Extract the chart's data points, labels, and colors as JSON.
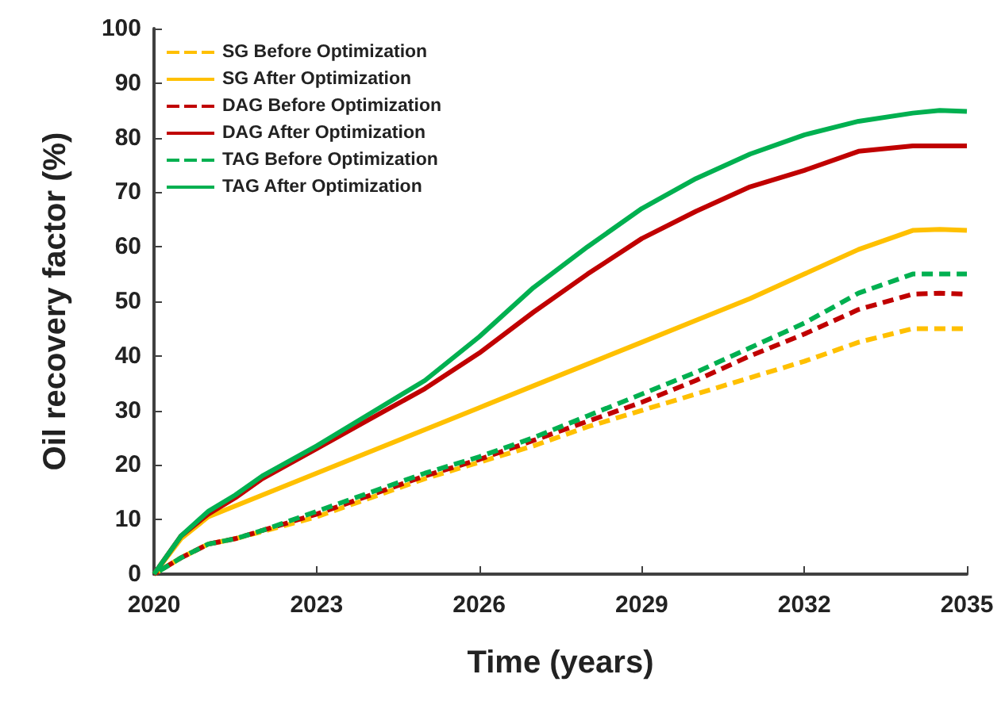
{
  "chart_data": {
    "type": "line",
    "xlabel": "Time (years)",
    "ylabel": "Oil recovery factor (%)",
    "x": [
      2020,
      2020.5,
      2021,
      2021.5,
      2022,
      2023,
      2024,
      2025,
      2026,
      2027,
      2028,
      2029,
      2030,
      2031,
      2032,
      2033,
      2034,
      2034.5,
      2035
    ],
    "xlim": [
      2020,
      2035
    ],
    "xticks": [
      2020,
      2023,
      2026,
      2029,
      2032,
      2035
    ],
    "ylim": [
      0,
      100
    ],
    "yticks": [
      0,
      10,
      20,
      30,
      40,
      50,
      60,
      70,
      80,
      90,
      100
    ],
    "grid": false,
    "legend": "top left",
    "marker": "none",
    "series": [
      {
        "name": "SG Before Optimization",
        "color": "#ffc000",
        "line_style": "dashed",
        "values": [
          0,
          3,
          5.5,
          6.5,
          7.8,
          10.5,
          14,
          17.5,
          20.5,
          23.5,
          27,
          30,
          33,
          36,
          39,
          42.5,
          45,
          45,
          45
        ]
      },
      {
        "name": "SG After Optimization",
        "color": "#ffc000",
        "line_style": "solid",
        "values": [
          0,
          6.5,
          10.5,
          12.5,
          14.5,
          18.5,
          22.5,
          26.5,
          30.5,
          34.5,
          38.5,
          42.5,
          46.5,
          50.5,
          55,
          59.5,
          63,
          63.2,
          63
        ]
      },
      {
        "name": "DAG Before Optimization",
        "color": "#c00000",
        "line_style": "dashed",
        "values": [
          0,
          3,
          5.5,
          6.5,
          8,
          11,
          14.5,
          18,
          21,
          24.5,
          28,
          31.5,
          35.5,
          40,
          44,
          48.5,
          51.3,
          51.5,
          51.3
        ]
      },
      {
        "name": "DAG After Optimization",
        "color": "#c00000",
        "line_style": "solid",
        "values": [
          0,
          7,
          11,
          14,
          17.5,
          23,
          28.5,
          34,
          40.5,
          48,
          55,
          61.5,
          66.5,
          71,
          74,
          77.5,
          78.5,
          78.5,
          78.5
        ]
      },
      {
        "name": "TAG Before Optimization",
        "color": "#00b050",
        "line_style": "dashed",
        "values": [
          0,
          3,
          5.5,
          6.5,
          8,
          11.5,
          15,
          18.5,
          21.5,
          25,
          29,
          33,
          37,
          41.5,
          46,
          51.5,
          55,
          55,
          55
        ]
      },
      {
        "name": "TAG After Optimization",
        "color": "#00b050",
        "line_style": "solid",
        "values": [
          0,
          7,
          11.5,
          14.5,
          18,
          23.5,
          29.5,
          35.5,
          43.5,
          52.5,
          60,
          67,
          72.5,
          77,
          80.5,
          83,
          84.5,
          85,
          84.8
        ]
      }
    ]
  }
}
